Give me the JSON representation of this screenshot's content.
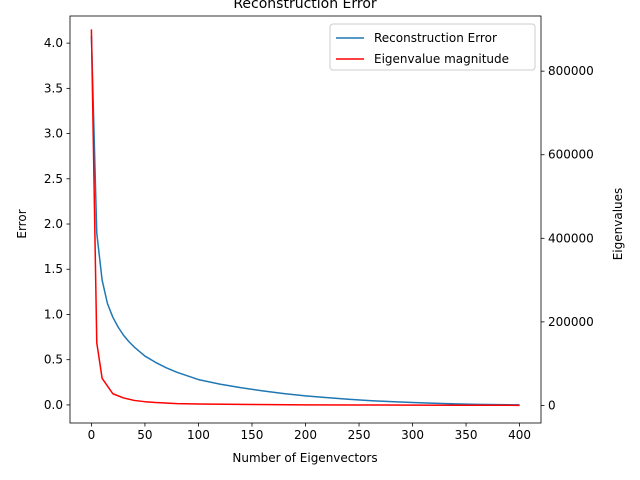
{
  "chart_data": {
    "type": "line",
    "title": "Reconstruction Error",
    "xlabel": "Number of Eigenvectors",
    "ylabel_left": "Error",
    "ylabel_right": "Eigenvalues",
    "xlim": [
      -20,
      420
    ],
    "ylim_left": [
      -0.2,
      4.3
    ],
    "ylim_right": [
      -42000,
      932000
    ],
    "xticks": [
      0,
      50,
      100,
      150,
      200,
      250,
      300,
      350,
      400
    ],
    "yticks_left": [
      0.0,
      0.5,
      1.0,
      1.5,
      2.0,
      2.5,
      3.0,
      3.5,
      4.0
    ],
    "yticks_left_labels": [
      "0.0",
      "0.5",
      "1.0",
      "1.5",
      "2.0",
      "2.5",
      "3.0",
      "3.5",
      "4.0"
    ],
    "yticks_right": [
      0,
      200000,
      400000,
      600000,
      800000
    ],
    "yticks_right_labels": [
      "0",
      "200000",
      "400000",
      "600000",
      "800000"
    ],
    "grid": false,
    "legend_position": "top-right",
    "series": [
      {
        "name": "Reconstruction Error",
        "axis": "left",
        "color": "#1f77b4",
        "x": [
          0,
          5,
          10,
          15,
          20,
          25,
          30,
          35,
          40,
          50,
          60,
          70,
          80,
          90,
          100,
          120,
          140,
          160,
          180,
          200,
          220,
          240,
          260,
          280,
          300,
          320,
          340,
          360,
          380,
          400
        ],
        "y": [
          4.08,
          1.9,
          1.38,
          1.12,
          0.97,
          0.86,
          0.77,
          0.7,
          0.64,
          0.54,
          0.47,
          0.41,
          0.36,
          0.32,
          0.28,
          0.23,
          0.19,
          0.155,
          0.125,
          0.1,
          0.08,
          0.063,
          0.048,
          0.036,
          0.026,
          0.018,
          0.011,
          0.006,
          0.003,
          0.0
        ]
      },
      {
        "name": "Eigenvalue magnitude",
        "axis": "right",
        "color": "#ff0000",
        "x": [
          0,
          5,
          10,
          20,
          30,
          40,
          50,
          60,
          80,
          100,
          150,
          200,
          250,
          300,
          350,
          400
        ],
        "y": [
          900000,
          150000,
          65000,
          28000,
          18000,
          12000,
          9000,
          7000,
          4500,
          3500,
          2200,
          1500,
          1100,
          800,
          500,
          300
        ]
      }
    ]
  }
}
